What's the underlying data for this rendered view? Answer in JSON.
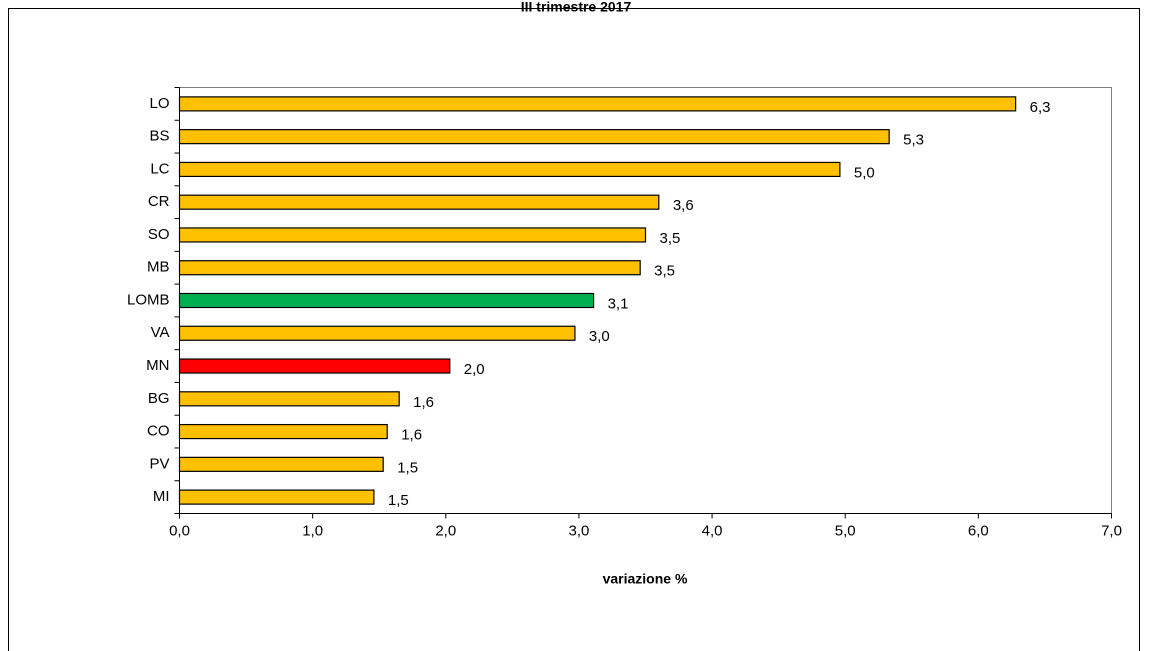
{
  "chart_data": {
    "type": "bar",
    "orientation": "horizontal",
    "title": "III trimestre 2017",
    "categories": [
      "LO",
      "BS",
      "LC",
      "CR",
      "SO",
      "MB",
      "LOMB",
      "VA",
      "MN",
      "BG",
      "CO",
      "PV",
      "MI"
    ],
    "values": [
      6.28,
      5.33,
      4.96,
      3.6,
      3.5,
      3.46,
      3.11,
      2.97,
      2.03,
      1.65,
      1.56,
      1.53,
      1.46
    ],
    "value_labels": [
      "6,3",
      "5,3",
      "5,0",
      "3,6",
      "3,5",
      "3,5",
      "3,1",
      "3,0",
      "2,0",
      "1,6",
      "1,6",
      "1,5",
      "1,5"
    ],
    "colors": [
      "#ffc000",
      "#ffc000",
      "#ffc000",
      "#ffc000",
      "#ffc000",
      "#ffc000",
      "#00b050",
      "#ffc000",
      "#ff0000",
      "#ffc000",
      "#ffc000",
      "#ffc000",
      "#ffc000"
    ],
    "xlabel": "variazione %",
    "xlim": [
      0,
      7
    ],
    "xticks": [
      {
        "value": 0,
        "label": "0,0"
      },
      {
        "value": 1,
        "label": "1,0"
      },
      {
        "value": 2,
        "label": "2,0"
      },
      {
        "value": 3,
        "label": "3,0"
      },
      {
        "value": 4,
        "label": "4,0"
      },
      {
        "value": 5,
        "label": "5,0"
      },
      {
        "value": 6,
        "label": "6,0"
      },
      {
        "value": 7,
        "label": "7,0"
      }
    ]
  }
}
